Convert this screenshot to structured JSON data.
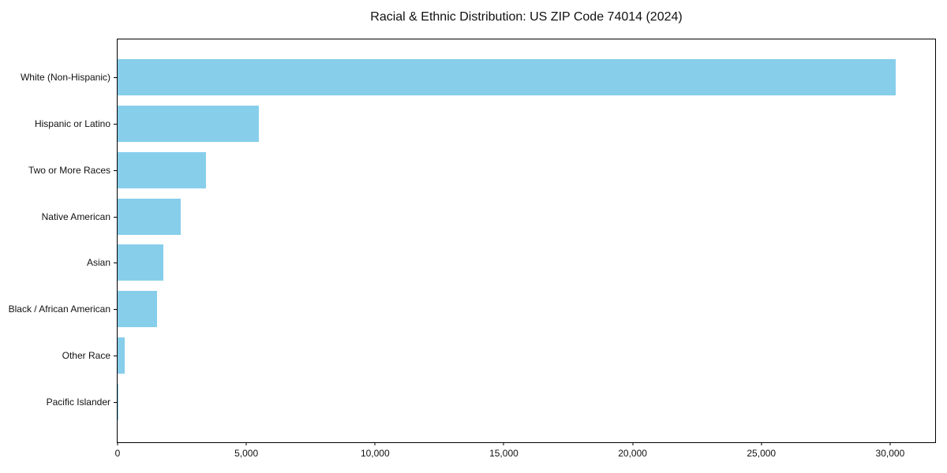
{
  "chart_data": {
    "type": "bar",
    "orientation": "horizontal",
    "title": "Racial & Ethnic Distribution: US ZIP Code 74014 (2024)",
    "xlabel": "",
    "ylabel": "",
    "categories": [
      "White (Non-Hispanic)",
      "Hispanic or Latino",
      "Two or More Races",
      "Native American",
      "Asian",
      "Black / African American",
      "Other Race",
      "Pacific Islander"
    ],
    "values": [
      30230,
      5490,
      3440,
      2460,
      1770,
      1540,
      290,
      15
    ],
    "xlim": [
      0,
      31750
    ],
    "xticks": [
      {
        "value": 0,
        "label": "0"
      },
      {
        "value": 5000,
        "label": "5,000"
      },
      {
        "value": 10000,
        "label": "10,000"
      },
      {
        "value": 15000,
        "label": "15,000"
      },
      {
        "value": 20000,
        "label": "20,000"
      },
      {
        "value": 25000,
        "label": "25,000"
      },
      {
        "value": 30000,
        "label": "30,000"
      }
    ],
    "bar_color": "#87CEEB",
    "grid": false,
    "legend": false
  }
}
